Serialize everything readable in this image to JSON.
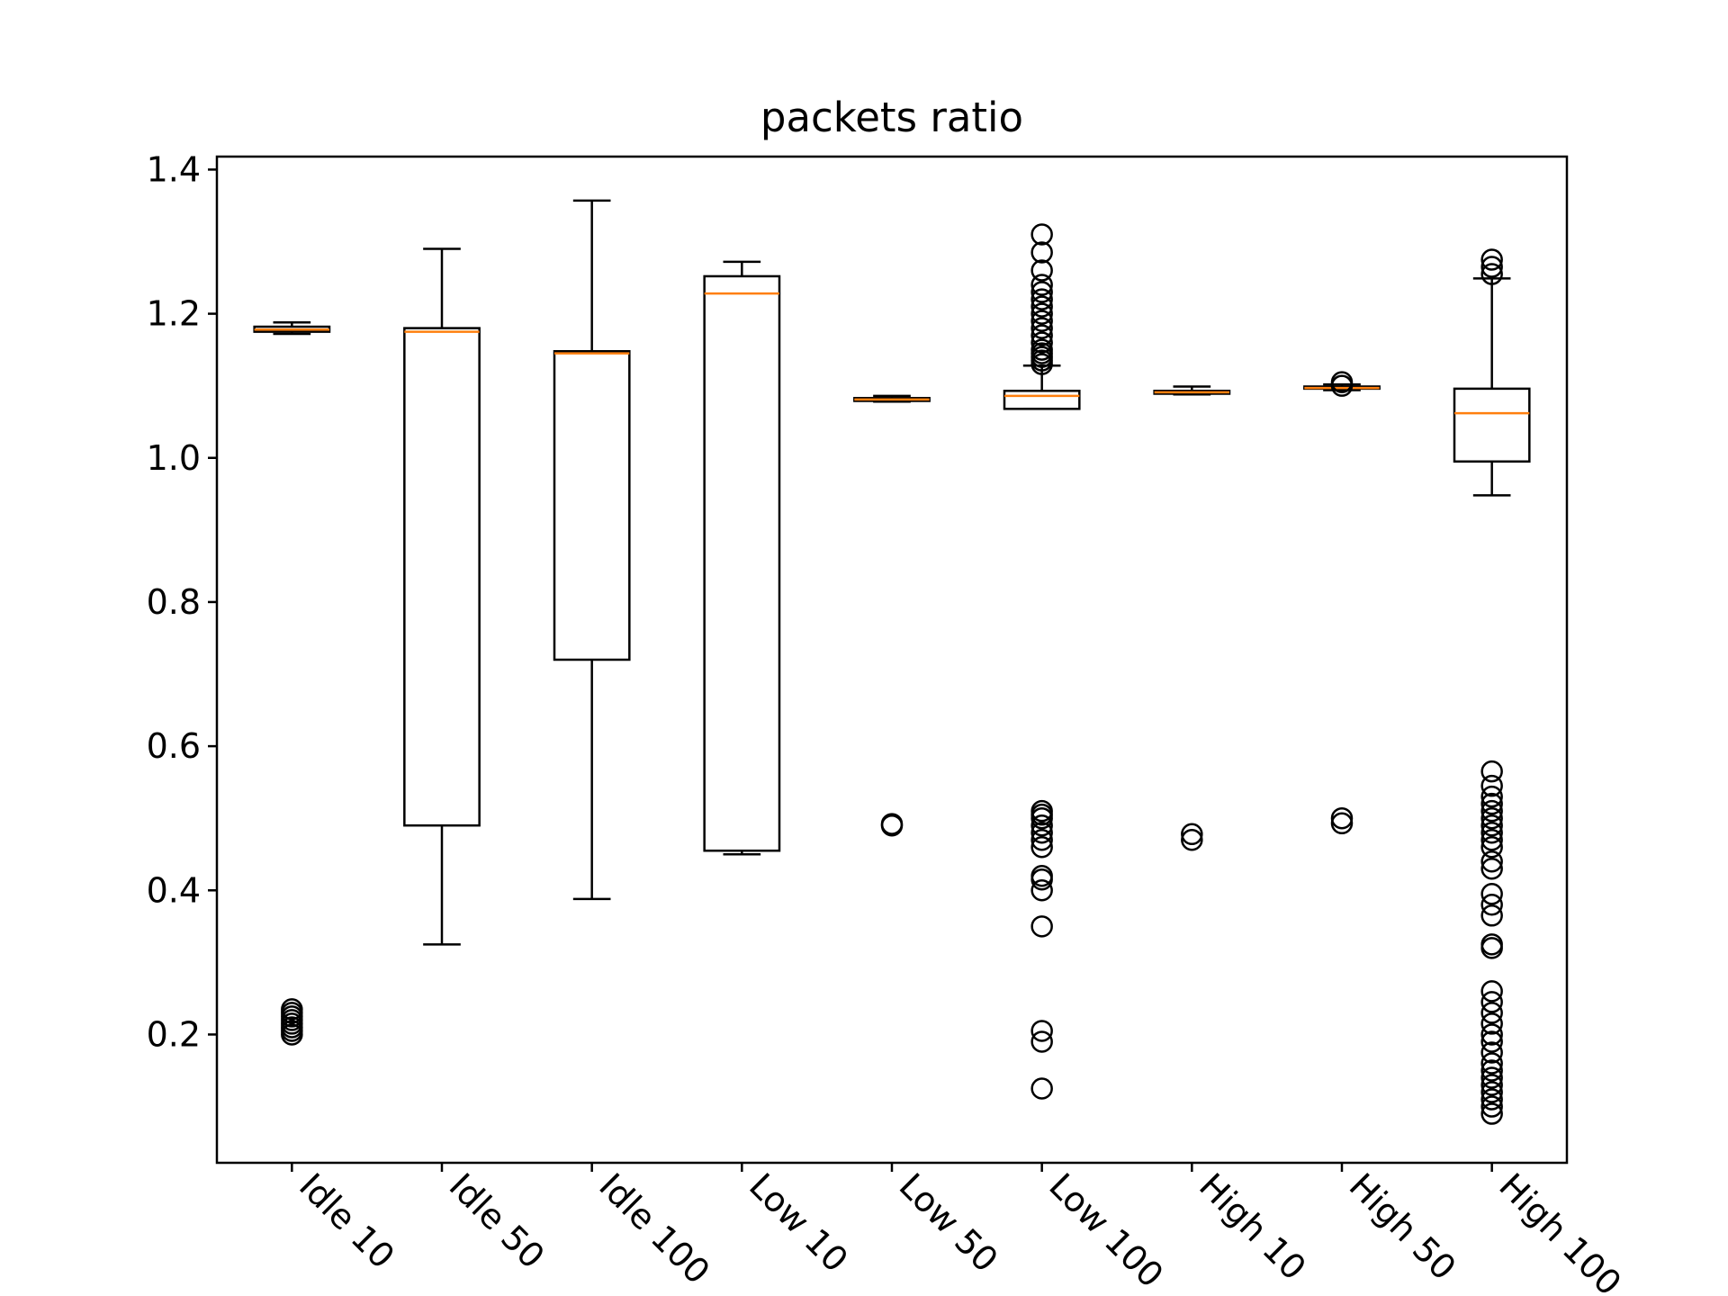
{
  "chart_data": {
    "type": "box",
    "title": "packets ratio",
    "xlabel": "",
    "ylabel": "",
    "ylim": [
      0.022,
      1.418
    ],
    "yticks": [
      0.2,
      0.4,
      0.6,
      0.8,
      1.0,
      1.2,
      1.4
    ],
    "ytick_labels": [
      "0.2",
      "0.4",
      "0.6",
      "0.8",
      "1.0",
      "1.2",
      "1.4"
    ],
    "grid": false,
    "colors": {
      "box": "#000000",
      "median": "#ff7f0e",
      "flier": "#000000"
    },
    "categories": [
      "Idle 10",
      "Idle 50",
      "Idle 100",
      "Low 10",
      "Low 50",
      "Low 100",
      "High 10",
      "High 50",
      "High 100"
    ],
    "boxes": [
      {
        "whisker_low": 1.172,
        "q1": 1.175,
        "median": 1.178,
        "q3": 1.182,
        "whisker_high": 1.188,
        "fliers": [
          0.2,
          0.205,
          0.21,
          0.215,
          0.22,
          0.225,
          0.23,
          0.235
        ]
      },
      {
        "whisker_low": 0.325,
        "q1": 0.49,
        "median": 1.175,
        "q3": 1.18,
        "whisker_high": 1.29,
        "fliers": []
      },
      {
        "whisker_low": 0.388,
        "q1": 0.72,
        "median": 1.145,
        "q3": 1.148,
        "whisker_high": 1.357,
        "fliers": []
      },
      {
        "whisker_low": 0.45,
        "q1": 0.455,
        "median": 1.228,
        "q3": 1.252,
        "whisker_high": 1.272,
        "fliers": []
      },
      {
        "whisker_low": 1.078,
        "q1": 1.079,
        "median": 1.081,
        "q3": 1.083,
        "whisker_high": 1.086,
        "fliers": [
          0.49,
          0.492
        ]
      },
      {
        "whisker_low": 1.068,
        "q1": 1.068,
        "median": 1.086,
        "q3": 1.093,
        "whisker_high": 1.128,
        "fliers": [
          1.13,
          1.135,
          1.14,
          1.145,
          1.15,
          1.16,
          1.17,
          1.18,
          1.19,
          1.2,
          1.21,
          1.22,
          1.23,
          1.24,
          1.26,
          1.285,
          1.31,
          0.125,
          0.19,
          0.205,
          0.35,
          0.4,
          0.415,
          0.42,
          0.46,
          0.47,
          0.48,
          0.49,
          0.5,
          0.505,
          0.51
        ]
      },
      {
        "whisker_low": 1.088,
        "q1": 1.089,
        "median": 1.091,
        "q3": 1.093,
        "whisker_high": 1.099,
        "fliers": [
          0.47,
          0.478
        ]
      },
      {
        "whisker_low": 1.094,
        "q1": 1.096,
        "median": 1.097,
        "q3": 1.099,
        "whisker_high": 1.102,
        "fliers": [
          1.1,
          1.105,
          0.493,
          0.5
        ]
      },
      {
        "whisker_low": 0.948,
        "q1": 0.995,
        "median": 1.062,
        "q3": 1.096,
        "whisker_high": 1.249,
        "fliers": [
          1.255,
          1.265,
          1.275,
          0.09,
          0.1,
          0.11,
          0.12,
          0.13,
          0.14,
          0.15,
          0.16,
          0.175,
          0.19,
          0.2,
          0.215,
          0.23,
          0.245,
          0.26,
          0.32,
          0.325,
          0.365,
          0.38,
          0.395,
          0.43,
          0.44,
          0.46,
          0.47,
          0.48,
          0.49,
          0.5,
          0.51,
          0.52,
          0.53,
          0.545,
          0.565
        ]
      }
    ]
  }
}
